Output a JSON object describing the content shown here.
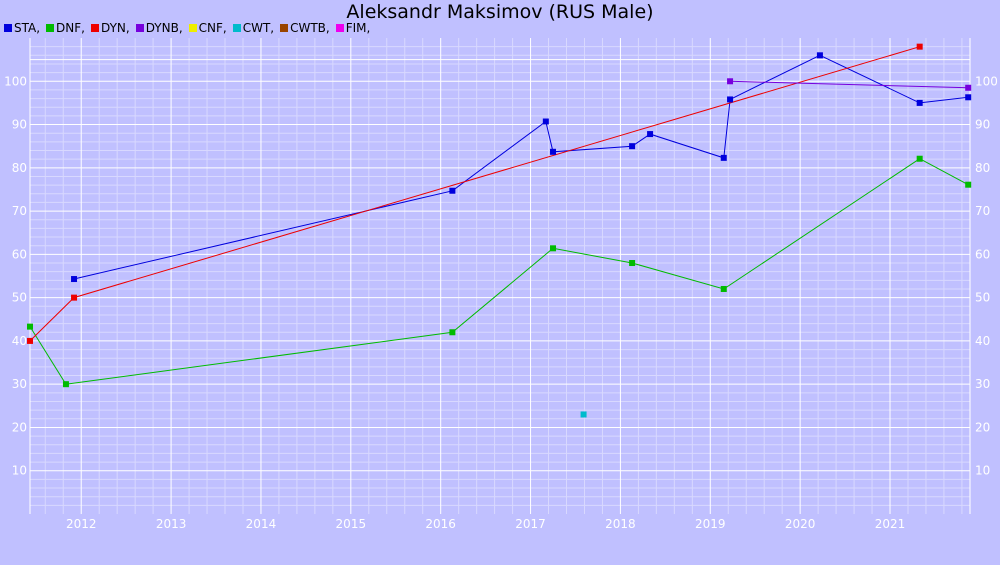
{
  "chart_data": {
    "type": "line",
    "title": "Aleksandr Maksimov (RUS Male)",
    "xlabel": "",
    "ylabel": "",
    "xlim": [
      2011.43,
      2021.89
    ],
    "ylim": [
      0,
      110
    ],
    "grid": true,
    "legend_position": "top-left",
    "x_ticks": [
      "2012",
      "2013",
      "2014",
      "2015",
      "2016",
      "2017",
      "2018",
      "2019",
      "2020",
      "2021"
    ],
    "y_ticks": [
      10,
      20,
      30,
      40,
      50,
      60,
      70,
      80,
      90,
      100
    ],
    "series": [
      {
        "name": "STA",
        "color": "#0000dd",
        "legend_label": "STA,",
        "points": [
          [
            2011.92,
            54.3
          ],
          [
            2016.13,
            74.7
          ],
          [
            2017.17,
            90.7
          ],
          [
            2017.25,
            83.7
          ],
          [
            2018.13,
            85.0
          ],
          [
            2018.33,
            87.8
          ],
          [
            2019.15,
            82.3
          ],
          [
            2019.22,
            95.8
          ],
          [
            2020.22,
            106.0
          ],
          [
            2021.33,
            95.0
          ],
          [
            2021.87,
            96.3
          ]
        ]
      },
      {
        "name": "DNF",
        "color": "#00bb00",
        "legend_label": "DNF,",
        "points": [
          [
            2011.43,
            43.3
          ],
          [
            2011.83,
            30.0
          ],
          [
            2016.13,
            42.0
          ],
          [
            2017.25,
            61.4
          ],
          [
            2018.13,
            58.0
          ],
          [
            2019.15,
            52.0
          ],
          [
            2021.33,
            82.1
          ],
          [
            2021.87,
            76.1
          ]
        ]
      },
      {
        "name": "DYN",
        "color": "#ee0000",
        "legend_label": "DYN,",
        "points": [
          [
            2011.43,
            40.0
          ],
          [
            2011.92,
            50.0
          ],
          [
            2021.33,
            108.0
          ]
        ]
      },
      {
        "name": "DYNB",
        "color": "#7700dd",
        "legend_label": "DYNB,",
        "points": [
          [
            2019.22,
            100.0
          ],
          [
            2021.87,
            98.5
          ]
        ]
      },
      {
        "name": "CNF",
        "color": "#eeee00",
        "legend_label": "CNF,",
        "points": []
      },
      {
        "name": "CWT",
        "color": "#00bbcc",
        "legend_label": "CWT,",
        "points": [
          [
            2017.59,
            23.0
          ]
        ],
        "markers_only": true
      },
      {
        "name": "CWTB",
        "color": "#994400",
        "legend_label": "CWTB,",
        "points": []
      },
      {
        "name": "FIM",
        "color": "#ee00ee",
        "legend_label": "FIM,",
        "points": []
      }
    ]
  }
}
